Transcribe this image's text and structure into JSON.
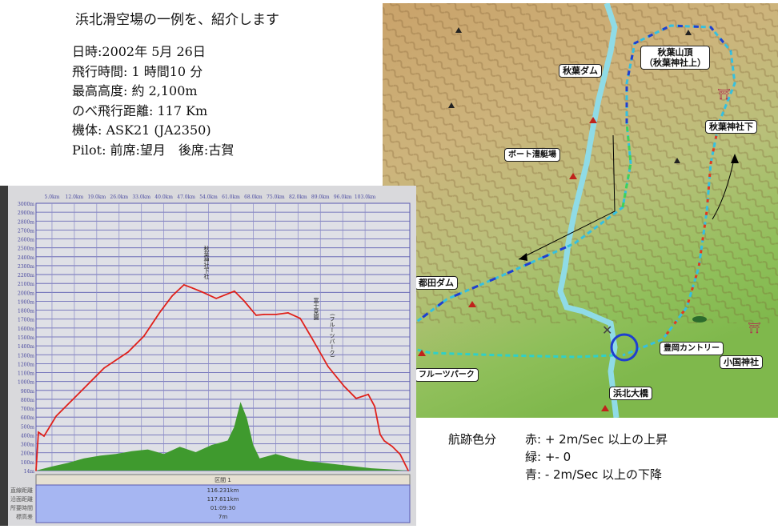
{
  "info": {
    "title": "浜北滑空場の一例を、紹介します",
    "lines": [
      "日時:2002年 5月 26日",
      "飛行時間: 1 時間10 分",
      "最高高度: 約 2,100m",
      "のべ飛行距離: 117 Km",
      "機体: ASK21 (JA2350)",
      "Pilot: 前席:望月　後席:古賀"
    ]
  },
  "map": {
    "labels": {
      "akiha_dam": "秋葉ダム",
      "akiha_summit_1": "秋葉山頂",
      "akiha_summit_2": "（秋葉神社上）",
      "akiha_shrine_lower": "秋葉神社下",
      "boat": "ボート漕艇場",
      "miyakoda_dam": "都田ダム",
      "fruit_park": "フルーツパーク",
      "hamakita_bridge": "浜北大橋",
      "toyooka_country": "豊岡カントリー",
      "okuni_shrine": "小国神社"
    },
    "track_colors": {
      "climb": "#e23a1e",
      "neutral": "#3fd25a",
      "sink": "#1f3fd0"
    }
  },
  "legend": {
    "heading": "航跡色分",
    "red": "赤: + 2m/Sec 以上の上昇",
    "green": "緑: +- 0",
    "blue": "青: -  2m/Sec 以上の下降"
  },
  "chart_data": {
    "type": "area",
    "x_ticks": [
      "5.0km",
      "12.0km",
      "19.0km",
      "26.0km",
      "33.0km",
      "40.0km",
      "47.0km",
      "54.0km",
      "61.0km",
      "68.0km",
      "75.0km",
      "82.0km",
      "89.0km",
      "96.0km",
      "103.0km"
    ],
    "y_ticks": [
      "3000m",
      "2900m",
      "2800m",
      "2700m",
      "2600m",
      "2500m",
      "2400m",
      "2300m",
      "2200m",
      "2100m",
      "2000m",
      "1900m",
      "1800m",
      "1700m",
      "1600m",
      "1500m",
      "1400m",
      "1300m",
      "1200m",
      "1100m",
      "1000m",
      "900m",
      "800m",
      "700m",
      "600m",
      "500m",
      "400m",
      "300m",
      "200m",
      "100m",
      "14m"
    ],
    "xlim": [
      0,
      117
    ],
    "ylim": [
      14,
      3000
    ],
    "grid": true,
    "series": [
      {
        "kind": "altitude",
        "color": "#e0201a",
        "x": [
          0,
          0.75,
          2.5,
          6.3,
          13.8,
          21.3,
          28.8,
          33.8,
          38.8,
          42.6,
          46.3,
          48.9,
          52.6,
          56.4,
          58.9,
          62.1,
          65.1,
          68.9,
          71.4,
          75.2,
          78.9,
          82.7,
          86.4,
          91.4,
          96.5,
          100.2,
          104,
          106,
          107.7,
          109,
          111.5,
          114,
          116.5
        ],
        "y": [
          14,
          443,
          398,
          622,
          890,
          1159,
          1338,
          1517,
          1785,
          1964,
          2089,
          2054,
          2000,
          1937,
          1973,
          2018,
          1910,
          1749,
          1758,
          1758,
          1776,
          1714,
          1490,
          1177,
          954,
          820,
          865,
          731,
          418,
          346,
          284,
          195,
          14
        ]
      },
      {
        "kind": "ground",
        "color": "#3f9a2e",
        "x": [
          0,
          5,
          10,
          15,
          20,
          25,
          30,
          35,
          40,
          45,
          50,
          55,
          58,
          60,
          62,
          64,
          66,
          68,
          70,
          75,
          80,
          85,
          90,
          95,
          100,
          105,
          110,
          116.5
        ],
        "y": [
          14,
          60,
          100,
          150,
          180,
          200,
          230,
          250,
          200,
          280,
          220,
          300,
          330,
          350,
          500,
          780,
          600,
          300,
          150,
          200,
          150,
          120,
          100,
          80,
          60,
          40,
          30,
          14
        ]
      }
    ],
    "annotations": [
      "秋葉神社下社",
      "富士見園",
      "(フルーツパーク)"
    ],
    "table": {
      "header": "区間 1",
      "rows": [
        {
          "label": "直線距離",
          "value": "116.231km"
        },
        {
          "label": "沿面距離",
          "value": "117.611km"
        },
        {
          "label": "所要時間",
          "value": "01:09:30"
        },
        {
          "label": "標高差",
          "value": "7m"
        }
      ]
    }
  }
}
